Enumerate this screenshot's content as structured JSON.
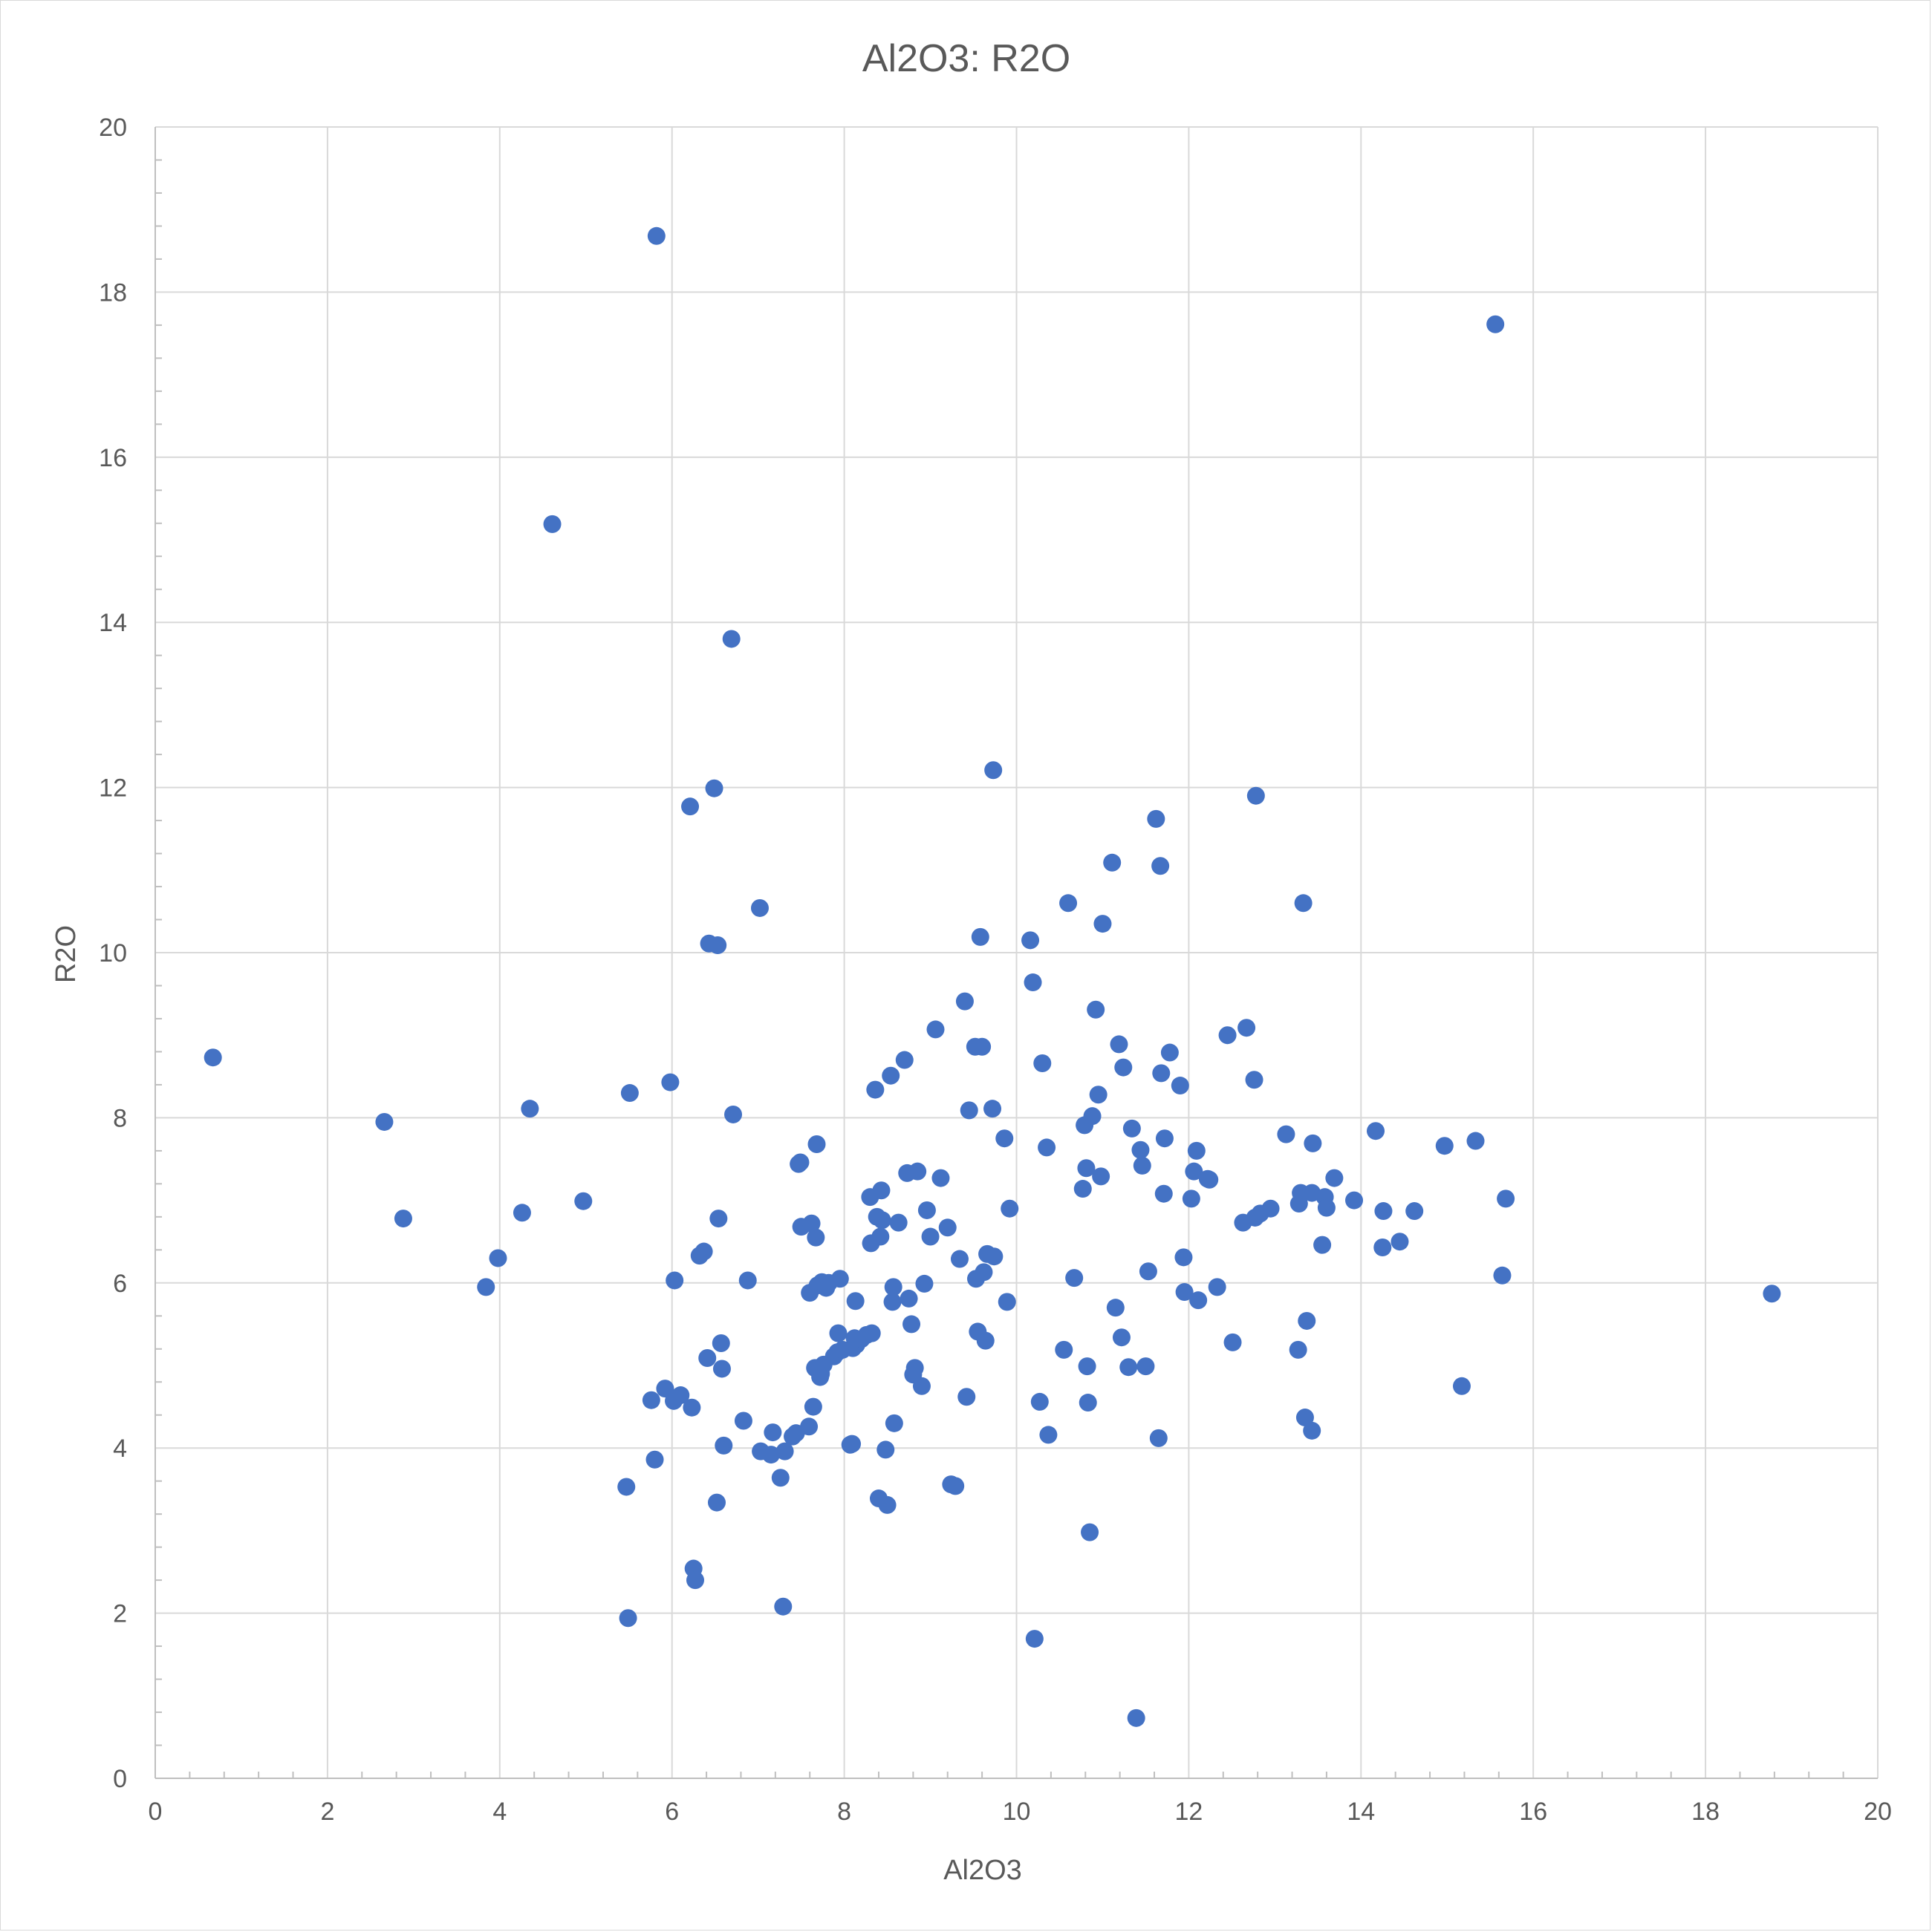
{
  "chart_data": {
    "type": "scatter",
    "title": "Al2O3: R2O",
    "xlabel": "Al2O3",
    "ylabel": "R2O",
    "xlim": [
      0,
      20
    ],
    "ylim": [
      0,
      20
    ],
    "x_ticks": [
      0,
      2,
      4,
      6,
      8,
      10,
      12,
      14,
      16,
      18,
      20
    ],
    "y_ticks": [
      0,
      2,
      4,
      6,
      8,
      10,
      12,
      14,
      16,
      18,
      20
    ],
    "grid": true,
    "legend": "none",
    "marker_color": "#4472C4",
    "series": [
      {
        "points": [
          [
            0.67,
            8.73
          ],
          [
            2.66,
            7.95
          ],
          [
            2.88,
            6.78
          ],
          [
            3.84,
            5.95
          ],
          [
            3.98,
            6.3
          ],
          [
            4.26,
            6.85
          ],
          [
            4.35,
            8.11
          ],
          [
            4.61,
            15.19
          ],
          [
            4.97,
            6.99
          ],
          [
            5.47,
            3.53
          ],
          [
            5.49,
            1.94
          ],
          [
            5.51,
            8.3
          ],
          [
            5.76,
            4.58
          ],
          [
            5.8,
            3.86
          ],
          [
            5.82,
            18.68
          ],
          [
            5.92,
            4.72
          ],
          [
            5.98,
            8.43
          ],
          [
            6.02,
            4.57
          ],
          [
            6.03,
            6.03
          ],
          [
            6.1,
            4.64
          ],
          [
            6.21,
            11.77
          ],
          [
            6.23,
            4.49
          ],
          [
            6.25,
            2.54
          ],
          [
            6.27,
            2.4
          ],
          [
            6.32,
            6.33
          ],
          [
            6.37,
            6.38
          ],
          [
            6.41,
            5.09
          ],
          [
            6.43,
            10.11
          ],
          [
            6.49,
            11.99
          ],
          [
            6.52,
            3.34
          ],
          [
            6.53,
            10.09
          ],
          [
            6.54,
            6.78
          ],
          [
            6.57,
            5.27
          ],
          [
            6.58,
            4.96
          ],
          [
            6.6,
            4.03
          ],
          [
            6.69,
            13.8
          ],
          [
            6.71,
            8.04
          ],
          [
            6.83,
            4.33
          ],
          [
            6.88,
            6.03
          ],
          [
            7.02,
            10.54
          ],
          [
            7.03,
            3.96
          ],
          [
            7.15,
            3.92
          ],
          [
            7.17,
            4.19
          ],
          [
            7.26,
            3.64
          ],
          [
            7.29,
            2.08
          ],
          [
            7.31,
            3.96
          ],
          [
            7.4,
            4.14
          ],
          [
            7.44,
            4.18
          ],
          [
            7.47,
            7.44
          ],
          [
            7.49,
            7.46
          ],
          [
            7.5,
            6.68
          ],
          [
            7.59,
            4.26
          ],
          [
            7.6,
            5.88
          ],
          [
            7.62,
            6.72
          ],
          [
            7.64,
            4.5
          ],
          [
            7.66,
            4.97
          ],
          [
            7.67,
            6.55
          ],
          [
            7.68,
            7.68
          ],
          [
            7.69,
            5.97
          ],
          [
            7.72,
            4.86
          ],
          [
            7.73,
            4.9
          ],
          [
            7.74,
            6.01
          ],
          [
            7.76,
            5.01
          ],
          [
            7.79,
            5.94
          ],
          [
            7.82,
            6.0
          ],
          [
            7.88,
            5.11
          ],
          [
            7.92,
            5.16
          ],
          [
            7.93,
            5.39
          ],
          [
            7.95,
            6.05
          ],
          [
            7.98,
            5.19
          ],
          [
            8.07,
            4.04
          ],
          [
            8.09,
            4.05
          ],
          [
            8.1,
            5.21
          ],
          [
            8.12,
            5.33
          ],
          [
            8.13,
            5.78
          ],
          [
            8.14,
            5.25
          ],
          [
            8.2,
            5.32
          ],
          [
            8.26,
            5.37
          ],
          [
            8.3,
            7.04
          ],
          [
            8.31,
            6.48
          ],
          [
            8.32,
            5.39
          ],
          [
            8.36,
            8.34
          ],
          [
            8.38,
            6.8
          ],
          [
            8.4,
            3.39
          ],
          [
            8.42,
            6.56
          ],
          [
            8.43,
            7.12
          ],
          [
            8.44,
            6.76
          ],
          [
            8.48,
            3.98
          ],
          [
            8.5,
            3.31
          ],
          [
            8.54,
            8.51
          ],
          [
            8.56,
            5.77
          ],
          [
            8.57,
            5.95
          ],
          [
            8.58,
            4.3
          ],
          [
            8.63,
            6.73
          ],
          [
            8.7,
            8.7
          ],
          [
            8.73,
            7.33
          ],
          [
            8.75,
            5.81
          ],
          [
            8.78,
            5.5
          ],
          [
            8.8,
            4.89
          ],
          [
            8.82,
            4.97
          ],
          [
            8.85,
            7.35
          ],
          [
            8.9,
            4.75
          ],
          [
            8.93,
            5.99
          ],
          [
            8.96,
            6.88
          ],
          [
            9.0,
            6.56
          ],
          [
            9.06,
            9.07
          ],
          [
            9.12,
            7.27
          ],
          [
            9.2,
            6.67
          ],
          [
            9.24,
            3.56
          ],
          [
            9.29,
            3.54
          ],
          [
            9.34,
            6.29
          ],
          [
            9.4,
            9.41
          ],
          [
            9.42,
            4.62
          ],
          [
            9.45,
            8.09
          ],
          [
            9.52,
            8.86
          ],
          [
            9.53,
            6.05
          ],
          [
            9.55,
            5.41
          ],
          [
            9.58,
            10.19
          ],
          [
            9.6,
            8.86
          ],
          [
            9.62,
            6.13
          ],
          [
            9.64,
            5.3
          ],
          [
            9.66,
            6.35
          ],
          [
            9.72,
            8.11
          ],
          [
            9.73,
            12.21
          ],
          [
            9.74,
            6.32
          ],
          [
            9.86,
            7.75
          ],
          [
            9.89,
            5.77
          ],
          [
            9.92,
            6.9
          ],
          [
            10.16,
            10.15
          ],
          [
            10.19,
            9.64
          ],
          [
            10.21,
            1.69
          ],
          [
            10.27,
            4.56
          ],
          [
            10.3,
            8.66
          ],
          [
            10.35,
            7.64
          ],
          [
            10.37,
            4.16
          ],
          [
            10.55,
            5.19
          ],
          [
            10.6,
            10.6
          ],
          [
            10.67,
            6.06
          ],
          [
            10.77,
            7.14
          ],
          [
            10.79,
            7.91
          ],
          [
            10.81,
            7.39
          ],
          [
            10.82,
            4.99
          ],
          [
            10.83,
            4.55
          ],
          [
            10.85,
            2.98
          ],
          [
            10.88,
            8.02
          ],
          [
            10.92,
            9.31
          ],
          [
            10.95,
            8.28
          ],
          [
            10.98,
            7.29
          ],
          [
            11.0,
            10.35
          ],
          [
            11.11,
            11.09
          ],
          [
            11.15,
            5.7
          ],
          [
            11.19,
            8.89
          ],
          [
            11.22,
            5.34
          ],
          [
            11.24,
            8.61
          ],
          [
            11.3,
            4.98
          ],
          [
            11.34,
            7.87
          ],
          [
            11.39,
            0.73
          ],
          [
            11.44,
            7.61
          ],
          [
            11.46,
            7.42
          ],
          [
            11.5,
            4.99
          ],
          [
            11.53,
            6.14
          ],
          [
            11.62,
            11.62
          ],
          [
            11.65,
            4.12
          ],
          [
            11.67,
            11.05
          ],
          [
            11.68,
            8.54
          ],
          [
            11.71,
            7.08
          ],
          [
            11.72,
            7.75
          ],
          [
            11.78,
            8.79
          ],
          [
            11.9,
            8.39
          ],
          [
            11.94,
            6.31
          ],
          [
            11.95,
            5.89
          ],
          [
            12.03,
            7.02
          ],
          [
            12.06,
            7.35
          ],
          [
            12.09,
            7.6
          ],
          [
            12.11,
            5.79
          ],
          [
            12.22,
            7.26
          ],
          [
            12.24,
            7.25
          ],
          [
            12.33,
            5.95
          ],
          [
            12.45,
            9.0
          ],
          [
            12.51,
            5.28
          ],
          [
            12.63,
            6.73
          ],
          [
            12.67,
            9.09
          ],
          [
            12.76,
            8.46
          ],
          [
            12.77,
            6.79
          ],
          [
            12.78,
            11.9
          ],
          [
            12.83,
            6.84
          ],
          [
            12.95,
            6.9
          ],
          [
            13.13,
            7.8
          ],
          [
            13.27,
            5.19
          ],
          [
            13.28,
            6.96
          ],
          [
            13.3,
            7.09
          ],
          [
            13.33,
            10.6
          ],
          [
            13.35,
            4.37
          ],
          [
            13.37,
            5.54
          ],
          [
            13.43,
            4.21
          ],
          [
            13.43,
            7.09
          ],
          [
            13.44,
            7.69
          ],
          [
            13.55,
            6.46
          ],
          [
            13.58,
            7.04
          ],
          [
            13.6,
            6.91
          ],
          [
            13.69,
            7.27
          ],
          [
            13.92,
            7.0
          ],
          [
            14.17,
            7.84
          ],
          [
            14.25,
            6.43
          ],
          [
            14.26,
            6.87
          ],
          [
            14.45,
            6.5
          ],
          [
            14.62,
            6.87
          ],
          [
            14.97,
            7.66
          ],
          [
            15.17,
            4.75
          ],
          [
            15.33,
            7.72
          ],
          [
            15.56,
            17.61
          ],
          [
            15.64,
            6.09
          ],
          [
            15.68,
            7.02
          ],
          [
            18.77,
            5.87
          ]
        ]
      }
    ]
  }
}
